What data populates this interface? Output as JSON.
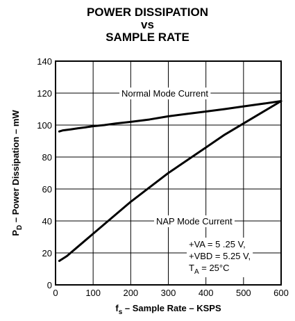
{
  "title": [
    "POWER DISSIPATION",
    "vs",
    "SAMPLE RATE"
  ],
  "chart_data": {
    "type": "line",
    "xlabel_main": "f",
    "xlabel_sub": "s",
    "xlabel_rest": " – Sample Rate – KSPS",
    "ylabel_main": "P",
    "ylabel_sub": "D",
    "ylabel_rest": " – Power Dissipation – mW",
    "xlim": [
      0,
      600
    ],
    "ylim": [
      0,
      140
    ],
    "xticks": [
      0,
      100,
      200,
      300,
      400,
      500,
      600
    ],
    "yticks": [
      0,
      20,
      40,
      60,
      80,
      100,
      120,
      140
    ],
    "grid": true,
    "series": [
      {
        "name": "Normal Mode Current",
        "x": [
          10,
          20,
          40,
          60,
          80,
          100,
          130,
          160,
          200,
          250,
          300,
          350,
          400,
          450,
          500,
          550,
          600
        ],
        "y": [
          96,
          96.7,
          97.3,
          98,
          98.6,
          99.3,
          100,
          101,
          102,
          103.5,
          105.5,
          107,
          108.5,
          110,
          111.7,
          113.3,
          115
        ]
      },
      {
        "name": "NAP Mode Current",
        "x": [
          10,
          30,
          60,
          100,
          150,
          200,
          250,
          300,
          350,
          400,
          450,
          500,
          550,
          600
        ],
        "y": [
          15,
          18,
          24,
          32,
          42,
          52,
          61,
          70,
          78,
          86,
          94,
          101,
          108,
          115
        ]
      }
    ],
    "annotations": {
      "normal_label": "Normal Mode Current",
      "nap_label": "NAP Mode Current",
      "cond_line1": "+VA = 5 .25 V,",
      "cond_line2": "+VBD = 5.25 V,",
      "cond_line3_main": "T",
      "cond_line3_sub": "A",
      "cond_line3_rest": " = 25°C"
    }
  }
}
